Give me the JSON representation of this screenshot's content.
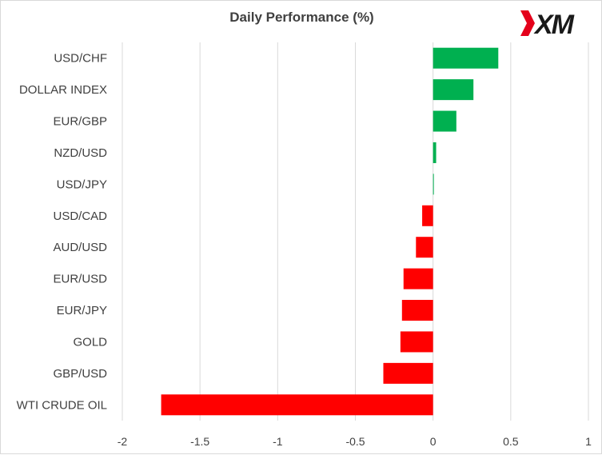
{
  "logo": {
    "text": "XM",
    "mark_color": "#e4001b",
    "text_color": "#1a1a1a"
  },
  "chart_data": {
    "type": "bar",
    "orientation": "horizontal",
    "title": "Daily Performance  (%)",
    "xlabel": "",
    "ylabel": "",
    "xlim": [
      -2,
      1
    ],
    "x_ticks": [
      "-2",
      "-1.5",
      "-1",
      "-0.5",
      "0",
      "0.5",
      "1"
    ],
    "x_tick_values": [
      -2,
      -1.5,
      -1,
      -0.5,
      0,
      0.5,
      1
    ],
    "grid": "vertical gridlines",
    "colors": {
      "positive": "#00b050",
      "negative": "#ff0000",
      "gridline": "#d9d9d9"
    },
    "categories": [
      "USD/CHF",
      "DOLLAR INDEX",
      "EUR/GBP",
      "NZD/USD",
      "USD/JPY",
      "USD/CAD",
      "AUD/USD",
      "EUR/USD",
      "EUR/JPY",
      "GOLD",
      "GBP/USD",
      "WTI CRUDE OIL"
    ],
    "values": [
      0.42,
      0.26,
      0.15,
      0.02,
      0.005,
      -0.07,
      -0.11,
      -0.19,
      -0.2,
      -0.21,
      -0.32,
      -1.75
    ]
  }
}
